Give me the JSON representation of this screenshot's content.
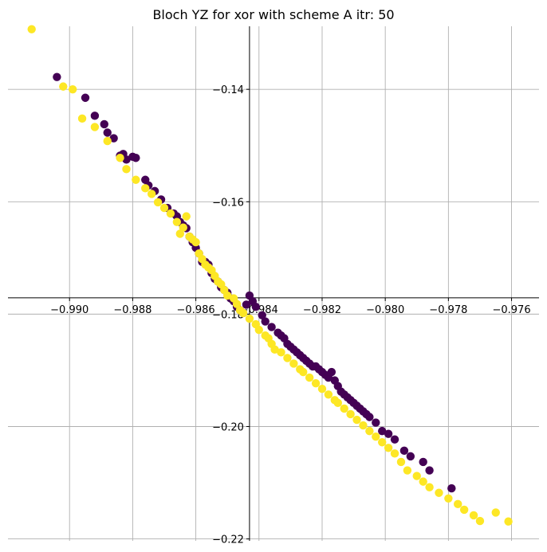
{
  "chart_data": {
    "type": "scatter",
    "title": "Bloch YZ for xor with scheme A itr: 50",
    "xlabel": "",
    "ylabel": "",
    "xlim": [
      -0.99195,
      -0.97513
    ],
    "ylim": [
      -0.22034,
      -0.12878
    ],
    "grid": true,
    "legend": "none",
    "spines": "centered at origin",
    "x_ticks": [
      -0.99,
      -0.988,
      -0.986,
      -0.984,
      -0.982,
      -0.98,
      -0.978,
      -0.976
    ],
    "x_tick_labels": [
      "−0.990",
      "−0.988",
      "−0.986",
      "−0.984",
      "−0.982",
      "−0.980",
      "−0.978",
      "−0.976"
    ],
    "y_ticks": [
      -0.14,
      -0.16,
      -0.18,
      -0.2,
      -0.22
    ],
    "y_tick_labels": [
      "−0.14",
      "−0.16",
      "−0.18",
      "−0.20",
      "−0.22"
    ],
    "spine_origin": {
      "x": -0.9843,
      "y": -0.1771
    },
    "colors": {
      "class_0": "#440154",
      "class_1": "#fde725",
      "grid": "#b0b0b0",
      "axis": "#000000"
    },
    "series": [
      {
        "color": "#440154",
        "x": [
          -0.9904,
          -0.9895,
          -0.9892,
          -0.9889,
          -0.9888,
          -0.9886,
          -0.9884,
          -0.9883,
          -0.9882,
          -0.988,
          -0.9879,
          -0.9876,
          -0.9875,
          -0.9873,
          -0.9871,
          -0.9869,
          -0.9867,
          -0.9866,
          -0.9865,
          -0.9864,
          -0.9863,
          -0.9862,
          -0.9861,
          -0.986,
          -0.9859,
          -0.9858,
          -0.9857,
          -0.9856,
          -0.9855,
          -0.9854,
          -0.9853,
          -0.9852,
          -0.9851,
          -0.985,
          -0.9849,
          -0.9848,
          -0.9847,
          -0.9846,
          -0.9845,
          -0.9844,
          -0.9843,
          -0.9842,
          -0.9841,
          -0.9839,
          -0.9838,
          -0.9836,
          -0.9834,
          -0.9833,
          -0.9832,
          -0.9831,
          -0.983,
          -0.9829,
          -0.9828,
          -0.9827,
          -0.9826,
          -0.9825,
          -0.9824,
          -0.9823,
          -0.9822,
          -0.9821,
          -0.982,
          -0.9819,
          -0.9818,
          -0.9817,
          -0.9816,
          -0.9815,
          -0.9814,
          -0.9813,
          -0.9812,
          -0.9811,
          -0.981,
          -0.9809,
          -0.9808,
          -0.9807,
          -0.9806,
          -0.9805,
          -0.9803,
          -0.9801,
          -0.9799,
          -0.9797,
          -0.9794,
          -0.9792,
          -0.9788,
          -0.9786,
          -0.9779
        ],
        "y": [
          -0.1378,
          -0.1415,
          -0.1447,
          -0.1462,
          -0.1477,
          -0.1487,
          -0.1518,
          -0.1515,
          -0.1525,
          -0.152,
          -0.1522,
          -0.1561,
          -0.1571,
          -0.1581,
          -0.1596,
          -0.1611,
          -0.1621,
          -0.1626,
          -0.1636,
          -0.1642,
          -0.1647,
          -0.1662,
          -0.1672,
          -0.1682,
          -0.1692,
          -0.1707,
          -0.1707,
          -0.1712,
          -0.1727,
          -0.1737,
          -0.1742,
          -0.1752,
          -0.1757,
          -0.1762,
          -0.1772,
          -0.1777,
          -0.1787,
          -0.1793,
          -0.1798,
          -0.1783,
          -0.1767,
          -0.1777,
          -0.1787,
          -0.1802,
          -0.1813,
          -0.1823,
          -0.1833,
          -0.1838,
          -0.1843,
          -0.1853,
          -0.1858,
          -0.1863,
          -0.1868,
          -0.1873,
          -0.1878,
          -0.1883,
          -0.1888,
          -0.1893,
          -0.1893,
          -0.1898,
          -0.1903,
          -0.1908,
          -0.1913,
          -0.1903,
          -0.1918,
          -0.1928,
          -0.1938,
          -0.1943,
          -0.1948,
          -0.1953,
          -0.1958,
          -0.1963,
          -0.1968,
          -0.1973,
          -0.1978,
          -0.1983,
          -0.1993,
          -0.2008,
          -0.2013,
          -0.2023,
          -0.2043,
          -0.2053,
          -0.2063,
          -0.2078,
          -0.211
        ]
      },
      {
        "color": "#fde725",
        "x": [
          -0.9912,
          -0.9902,
          -0.9899,
          -0.9896,
          -0.9892,
          -0.9888,
          -0.9884,
          -0.9882,
          -0.9879,
          -0.9876,
          -0.9874,
          -0.9872,
          -0.987,
          -0.9868,
          -0.9866,
          -0.9865,
          -0.9864,
          -0.9863,
          -0.9862,
          -0.9861,
          -0.986,
          -0.9859,
          -0.9858,
          -0.9857,
          -0.9856,
          -0.9855,
          -0.9854,
          -0.9853,
          -0.9852,
          -0.9851,
          -0.985,
          -0.9848,
          -0.9847,
          -0.9846,
          -0.9845,
          -0.9843,
          -0.9841,
          -0.984,
          -0.9838,
          -0.9837,
          -0.9836,
          -0.9835,
          -0.9833,
          -0.9831,
          -0.9829,
          -0.9827,
          -0.9826,
          -0.9824,
          -0.9822,
          -0.982,
          -0.9818,
          -0.9816,
          -0.9815,
          -0.9813,
          -0.9811,
          -0.9809,
          -0.9807,
          -0.9805,
          -0.9803,
          -0.9801,
          -0.9799,
          -0.9797,
          -0.9795,
          -0.9793,
          -0.979,
          -0.9788,
          -0.9786,
          -0.9783,
          -0.978,
          -0.9777,
          -0.9775,
          -0.9772,
          -0.977,
          -0.9765,
          -0.9761
        ],
        "y": [
          -0.1293,
          -0.1395,
          -0.14,
          -0.1452,
          -0.1467,
          -0.1492,
          -0.1522,
          -0.1542,
          -0.1561,
          -0.1576,
          -0.1586,
          -0.1601,
          -0.1611,
          -0.1621,
          -0.1636,
          -0.1657,
          -0.1646,
          -0.1626,
          -0.1662,
          -0.1667,
          -0.1672,
          -0.1692,
          -0.1702,
          -0.1712,
          -0.1717,
          -0.1722,
          -0.1732,
          -0.1742,
          -0.1747,
          -0.1757,
          -0.1767,
          -0.1772,
          -0.1782,
          -0.1793,
          -0.1798,
          -0.1808,
          -0.1818,
          -0.1828,
          -0.1838,
          -0.1843,
          -0.1853,
          -0.1863,
          -0.1868,
          -0.1878,
          -0.1888,
          -0.1898,
          -0.1903,
          -0.1913,
          -0.1923,
          -0.1933,
          -0.1943,
          -0.1953,
          -0.1958,
          -0.1968,
          -0.1978,
          -0.1988,
          -0.1998,
          -0.2008,
          -0.2018,
          -0.2028,
          -0.2038,
          -0.2048,
          -0.2063,
          -0.2078,
          -0.2088,
          -0.2098,
          -0.2108,
          -0.2118,
          -0.2128,
          -0.2138,
          -0.2148,
          -0.2158,
          -0.2168,
          -0.2153,
          -0.2169
        ]
      }
    ]
  }
}
